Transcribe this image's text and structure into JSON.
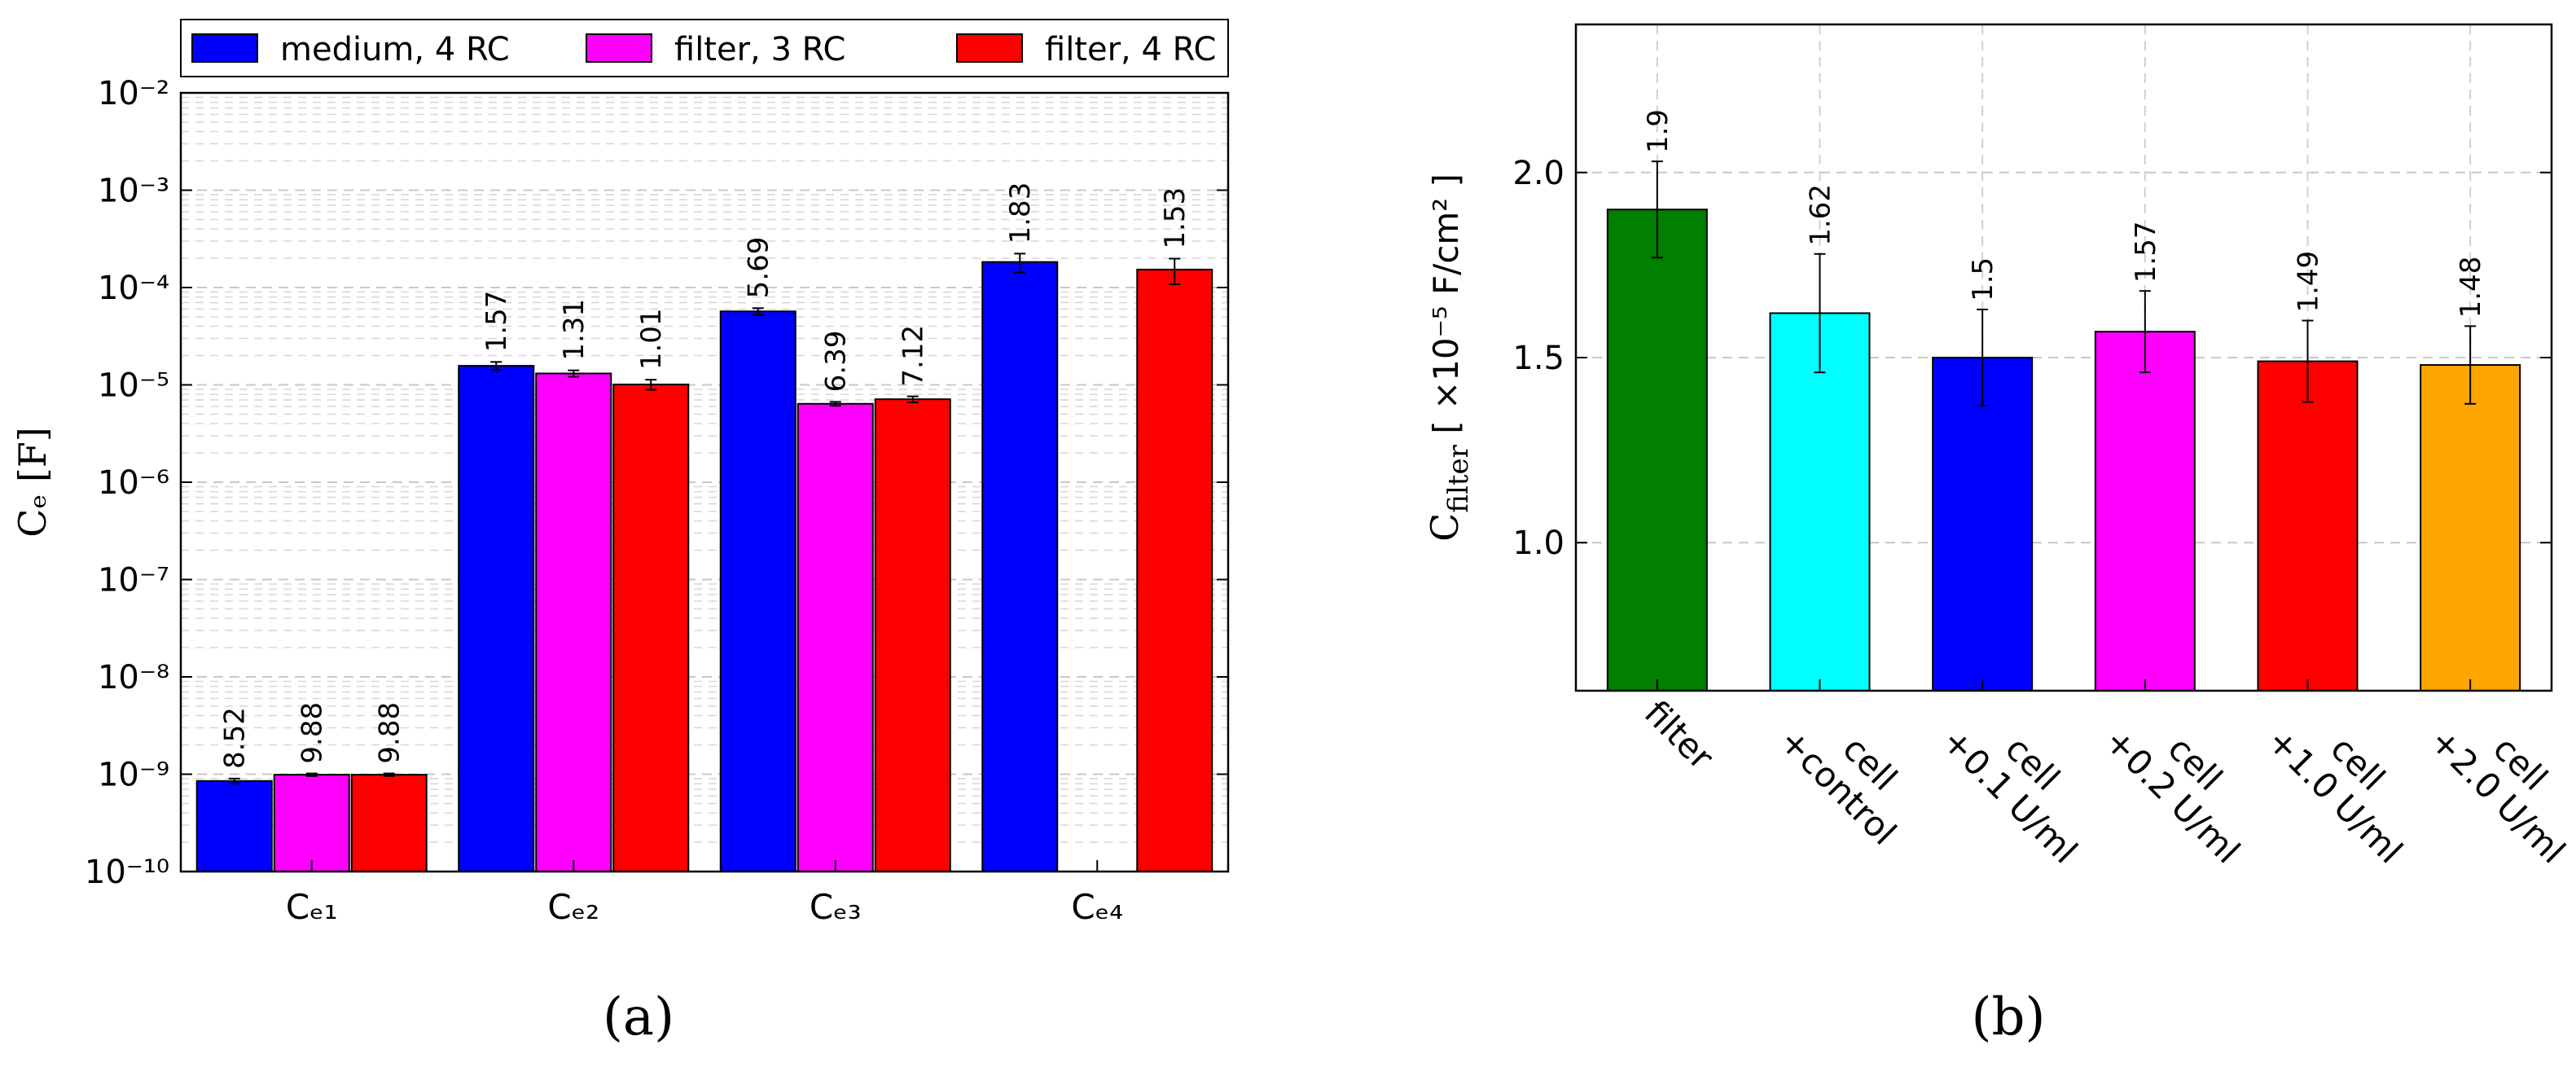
{
  "chart_data": [
    {
      "type": "bar",
      "panel": "a",
      "caption": "(a)",
      "ylabel": "Cₑ [F]",
      "yscale": "log",
      "ylim": [
        1e-10,
        0.01
      ],
      "ytick_labels": [
        "10⁻¹⁰",
        "10⁻⁹",
        "10⁻⁸",
        "10⁻⁷",
        "10⁻⁶",
        "10⁻⁵",
        "10⁻⁴",
        "10⁻³",
        "10⁻²"
      ],
      "categories": [
        "Cₑ₁",
        "Cₑ₂",
        "Cₑ₃",
        "Cₑ₄"
      ],
      "legend_position": "top",
      "series": [
        {
          "name": "medium, 4 RC",
          "color": "#0000ff",
          "values": [
            8.52e-10,
            1.57e-05,
            5.69e-05,
            0.000183
          ],
          "errors": [
            5e-11,
            1.5e-06,
            4.5e-06,
            4e-05
          ],
          "labels": [
            "8.52",
            "1.57",
            "5.69",
            "1.83"
          ]
        },
        {
          "name": "filter, 3 RC",
          "color": "#ff00ff",
          "values": [
            9.88e-10,
            1.31e-05,
            6.39e-06,
            null
          ],
          "errors": [
            3e-11,
            1e-06,
            3e-07,
            null
          ],
          "labels": [
            "9.88",
            "1.31",
            "6.39",
            ""
          ]
        },
        {
          "name": "filter, 4 RC",
          "color": "#ff0000",
          "values": [
            9.88e-10,
            1.01e-05,
            7.12e-06,
            0.000153
          ],
          "errors": [
            3e-11,
            1.2e-06,
            5e-07,
            4.5e-05
          ],
          "labels": [
            "9.88",
            "1.01",
            "7.12",
            "1.53"
          ]
        }
      ]
    },
    {
      "type": "bar",
      "panel": "b",
      "caption": "(b)",
      "ylabel": "C",
      "ylabel_sub": "filter",
      "ylabel_unit": " [ ×10⁻⁵ F/cm² ]",
      "ylim": [
        0.6,
        2.4
      ],
      "yticks": [
        1.0,
        1.5,
        2.0
      ],
      "ytick_labels": [
        "1.0",
        "1.5",
        "2.0"
      ],
      "categories": [
        [
          "filter"
        ],
        [
          "cell",
          "+control"
        ],
        [
          "cell",
          "+0.1 U/ml"
        ],
        [
          "cell",
          "+0.2 U/ml"
        ],
        [
          "cell",
          "+1.0 U/ml"
        ],
        [
          "cell",
          "+2.0 U/ml"
        ]
      ],
      "values": [
        1.9,
        1.62,
        1.5,
        1.57,
        1.49,
        1.48
      ],
      "errors": [
        0.13,
        0.16,
        0.13,
        0.11,
        0.11,
        0.105
      ],
      "labels": [
        "1.9",
        "1.62",
        "1.5",
        "1.57",
        "1.49",
        "1.48"
      ],
      "colors": [
        "#007f00",
        "#00ffff",
        "#0000ff",
        "#ff00ff",
        "#ff0000",
        "#ffa500"
      ]
    }
  ]
}
